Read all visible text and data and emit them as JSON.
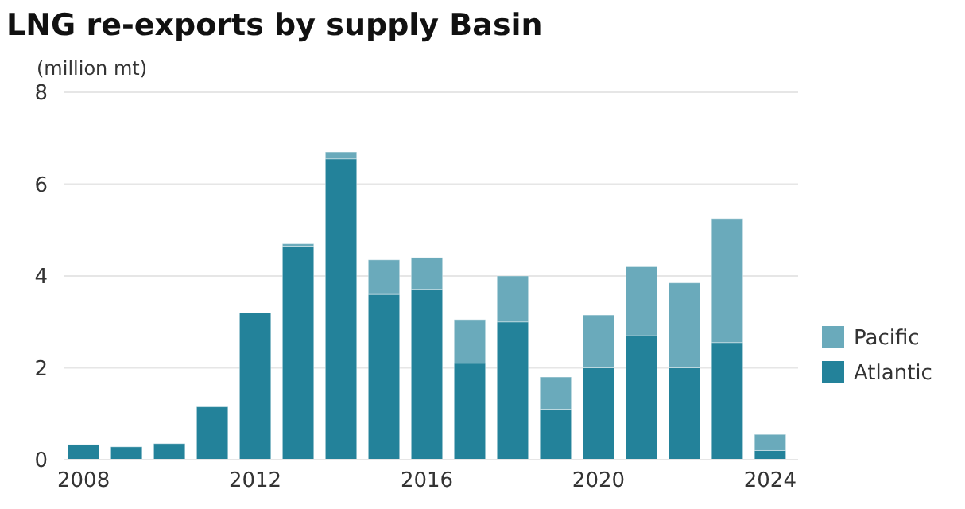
{
  "chart_data": {
    "type": "bar",
    "title": "LNG re-exports by supply Basin",
    "ylabel": "(million mt)",
    "categories": [
      "2008",
      null,
      null,
      null,
      "2012",
      null,
      null,
      null,
      "2016",
      null,
      null,
      null,
      "2020",
      null,
      null,
      null,
      "2024"
    ],
    "series": [
      {
        "name": "Atlantic",
        "color": "#23829a",
        "values": [
          0.33,
          0.28,
          0.35,
          1.15,
          3.2,
          4.65,
          6.55,
          3.6,
          3.7,
          2.1,
          3.0,
          1.1,
          2.0,
          2.7,
          2.0,
          2.55,
          0.2
        ]
      },
      {
        "name": "Pacific",
        "color": "#6aaabb",
        "values": [
          0,
          0,
          0,
          0,
          0,
          0.05,
          0.15,
          0.75,
          0.7,
          0.95,
          1.0,
          0.7,
          1.15,
          1.5,
          1.85,
          2.7,
          0.35
        ]
      }
    ],
    "stacked": true,
    "ylim": [
      0,
      8
    ],
    "yticks": [
      0,
      2,
      4,
      6,
      8
    ],
    "grid": "y",
    "legend": "right"
  }
}
